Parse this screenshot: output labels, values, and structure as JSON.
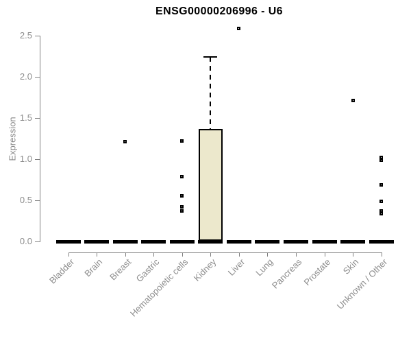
{
  "title": "ENSG00000206996 - U6",
  "chart_data": {
    "type": "boxplot",
    "title": "ENSG00000206996 - U6",
    "xlabel": "",
    "ylabel": "Expression",
    "ylim": [
      0,
      2.5
    ],
    "yticks": [
      "0.0",
      "0.5",
      "1.0",
      "1.5",
      "2.0",
      "2.5"
    ],
    "grid": false,
    "legend": "none",
    "point_style": "open-square",
    "colors": {
      "box_fill": "#ECE8CC",
      "box_border": "#000000",
      "median": "#000000",
      "axis": "#7f7f7f",
      "tick_labels": "#8c8c8c",
      "title": "#000000",
      "background": "#ffffff"
    },
    "categories": [
      "Bladder",
      "Brain",
      "Breast",
      "Gastric",
      "Hematopoietic cells",
      "Kidney",
      "Liver",
      "Lung",
      "Pancreas",
      "Prostate",
      "Skin",
      "Unknown / Other"
    ],
    "boxes": [
      {
        "category": "Bladder",
        "median": 0,
        "q1": 0,
        "q3": 0,
        "whisker_low": 0,
        "whisker_high": 0,
        "outliers": []
      },
      {
        "category": "Brain",
        "median": 0,
        "q1": 0,
        "q3": 0,
        "whisker_low": 0,
        "whisker_high": 0,
        "outliers": []
      },
      {
        "category": "Breast",
        "median": 0,
        "q1": 0,
        "q3": 0,
        "whisker_low": 0,
        "whisker_high": 0,
        "outliers": [
          1.21
        ]
      },
      {
        "category": "Gastric",
        "median": 0,
        "q1": 0,
        "q3": 0,
        "whisker_low": 0,
        "whisker_high": 0,
        "outliers": []
      },
      {
        "category": "Hematopoietic cells",
        "median": 0,
        "q1": 0,
        "q3": 0,
        "whisker_low": 0,
        "whisker_high": 0,
        "outliers": [
          1.22,
          0.78,
          0.55,
          0.42,
          0.37
        ]
      },
      {
        "category": "Kidney",
        "median": 0,
        "q1": 0,
        "q3": 1.36,
        "whisker_low": 0,
        "whisker_high": 2.24,
        "outliers": []
      },
      {
        "category": "Liver",
        "median": 0,
        "q1": 0,
        "q3": 0,
        "whisker_low": 0,
        "whisker_high": 0,
        "outliers": [
          2.58
        ]
      },
      {
        "category": "Lung",
        "median": 0,
        "q1": 0,
        "q3": 0,
        "whisker_low": 0,
        "whisker_high": 0,
        "outliers": []
      },
      {
        "category": "Pancreas",
        "median": 0,
        "q1": 0,
        "q3": 0,
        "whisker_low": 0,
        "whisker_high": 0,
        "outliers": []
      },
      {
        "category": "Prostate",
        "median": 0,
        "q1": 0,
        "q3": 0,
        "whisker_low": 0,
        "whisker_high": 0,
        "outliers": []
      },
      {
        "category": "Skin",
        "median": 0,
        "q1": 0,
        "q3": 0,
        "whisker_low": 0,
        "whisker_high": 0,
        "outliers": [
          1.71
        ]
      },
      {
        "category": "Unknown / Other",
        "median": 0,
        "q1": 0,
        "q3": 0,
        "whisker_low": 0,
        "whisker_high": 0,
        "outliers": [
          1.02,
          0.98,
          0.68,
          0.48,
          0.37,
          0.33
        ]
      }
    ]
  }
}
